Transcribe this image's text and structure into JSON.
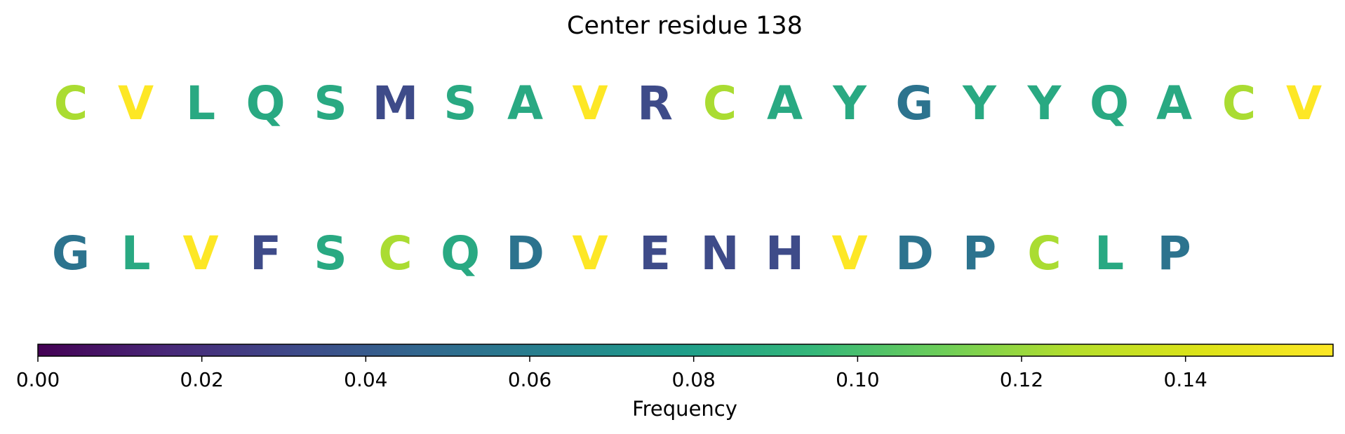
{
  "chart_data": {
    "type": "sequence-logo-colorbar",
    "title": "Center residue 138",
    "rows": [
      {
        "residues": [
          "C",
          "V",
          "L",
          "Q",
          "S",
          "M",
          "S",
          "A",
          "V",
          "R",
          "C",
          "A",
          "Y",
          "G",
          "Y",
          "Y",
          "Q",
          "A",
          "C",
          "V"
        ],
        "frequencies": [
          0.124,
          0.158,
          0.086,
          0.086,
          0.086,
          0.032,
          0.086,
          0.086,
          0.158,
          0.032,
          0.124,
          0.086,
          0.086,
          0.054,
          0.086,
          0.086,
          0.086,
          0.086,
          0.124,
          0.158
        ]
      },
      {
        "residues": [
          "G",
          "L",
          "V",
          "F",
          "S",
          "C",
          "Q",
          "D",
          "V",
          "E",
          "N",
          "H",
          "V",
          "D",
          "P",
          "C",
          "L",
          "P"
        ],
        "frequencies": [
          0.054,
          0.086,
          0.158,
          0.032,
          0.086,
          0.124,
          0.086,
          0.054,
          0.158,
          0.032,
          0.032,
          0.032,
          0.158,
          0.054,
          0.054,
          0.124,
          0.086,
          0.054
        ]
      }
    ],
    "colorbar": {
      "label": "Frequency",
      "colormap": "viridis",
      "range": [
        0,
        0.158
      ],
      "tick_values": [
        0.0,
        0.02,
        0.04,
        0.06,
        0.08,
        0.1,
        0.12,
        0.14
      ],
      "tick_labels": [
        "0.00",
        "0.02",
        "0.04",
        "0.06",
        "0.08",
        "0.10",
        "0.12",
        "0.14"
      ]
    }
  }
}
